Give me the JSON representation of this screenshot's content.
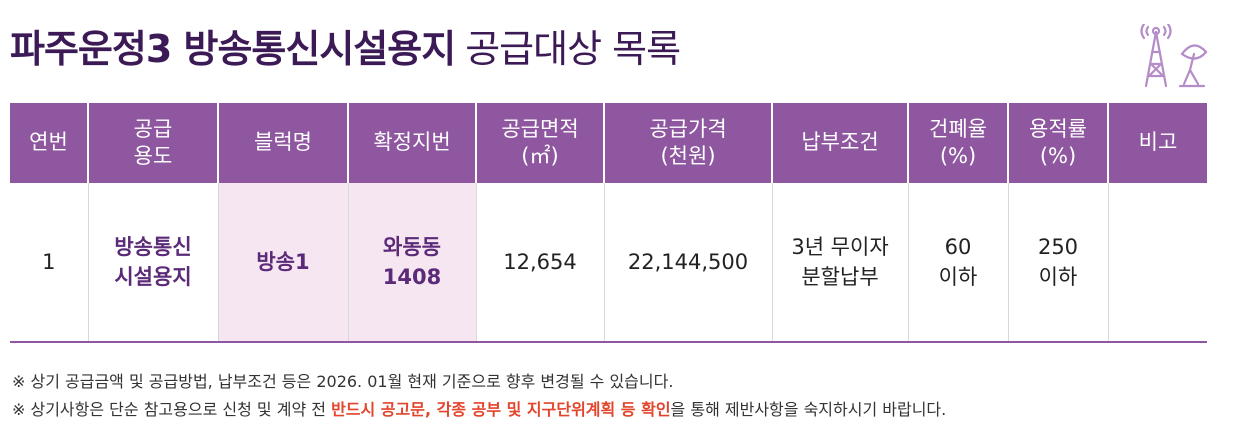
{
  "header": {
    "title_bold": "파주운정3 방송통신시설용지",
    "title_rest": "공급대상 목록"
  },
  "table": {
    "columns": [
      "연번",
      "공급\n용도",
      "블럭명",
      "확정지번",
      "공급면적\n(㎡)",
      "공급가격\n(천원)",
      "납부조건",
      "건폐율\n(%)",
      "용적률\n(%)",
      "비고"
    ],
    "rows": [
      [
        "1",
        "방송통신\n시설용지",
        "방송1",
        "와동동\n1408",
        "12,654",
        "22,144,500",
        "3년 무이자\n분할납부",
        "60\n이하",
        "250\n이하"
      ]
    ]
  },
  "notes": [
    {
      "text": "※ 상기 공급금액 및 공급방법, 납부조건 등은 2026. 01월 현재 기준으로 향후 변경될 수 있습니다."
    },
    {
      "before": "※ 상기사항은 단순 참고용으로 신청 및 계약 전 ",
      "emphasis": "반드시 공고문, 각종 공부 및 지구단위계획 등 확인",
      "after": "을 통해 제반사항을 숙지하시기 바랍니다."
    }
  ]
}
